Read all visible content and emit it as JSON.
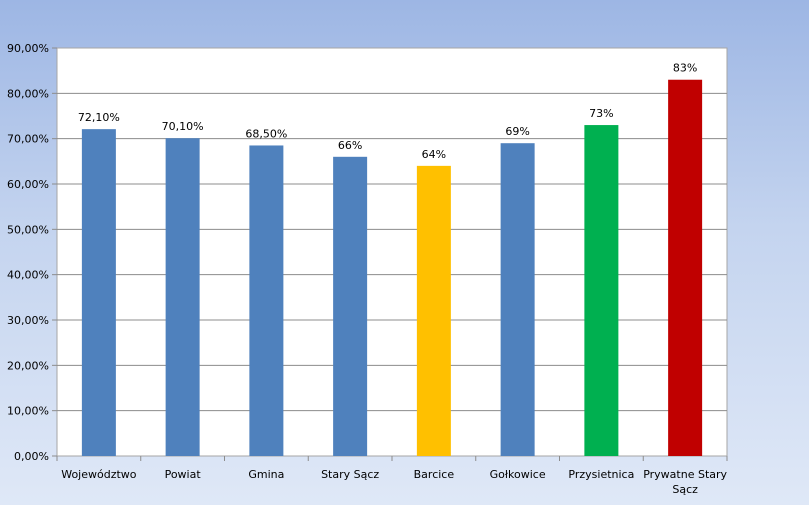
{
  "chart_data": {
    "type": "bar",
    "title": "",
    "xlabel": "",
    "ylabel": "",
    "ylim": [
      0,
      90
    ],
    "y_ticks": [
      "0,00%",
      "10,00%",
      "20,00%",
      "30,00%",
      "40,00%",
      "50,00%",
      "60,00%",
      "70,00%",
      "80,00%",
      "90,00%"
    ],
    "grid": true,
    "legend": "none",
    "categories": [
      "Województwo",
      "Powiat",
      "Gmina",
      "Stary Sącz",
      "Barcice",
      "Gołkowice",
      "Przysietnica",
      "Prywatne Stary Sącz"
    ],
    "values": [
      72.1,
      70.1,
      68.5,
      66,
      64,
      69,
      73,
      83
    ],
    "data_labels": [
      "72,10%",
      "70,10%",
      "68,50%",
      "66%",
      "64%",
      "69%",
      "73%",
      "83%"
    ],
    "colors": [
      "#4f81bd",
      "#4f81bd",
      "#4f81bd",
      "#4f81bd",
      "#ffc000",
      "#4f81bd",
      "#00b050",
      "#c00000"
    ]
  }
}
